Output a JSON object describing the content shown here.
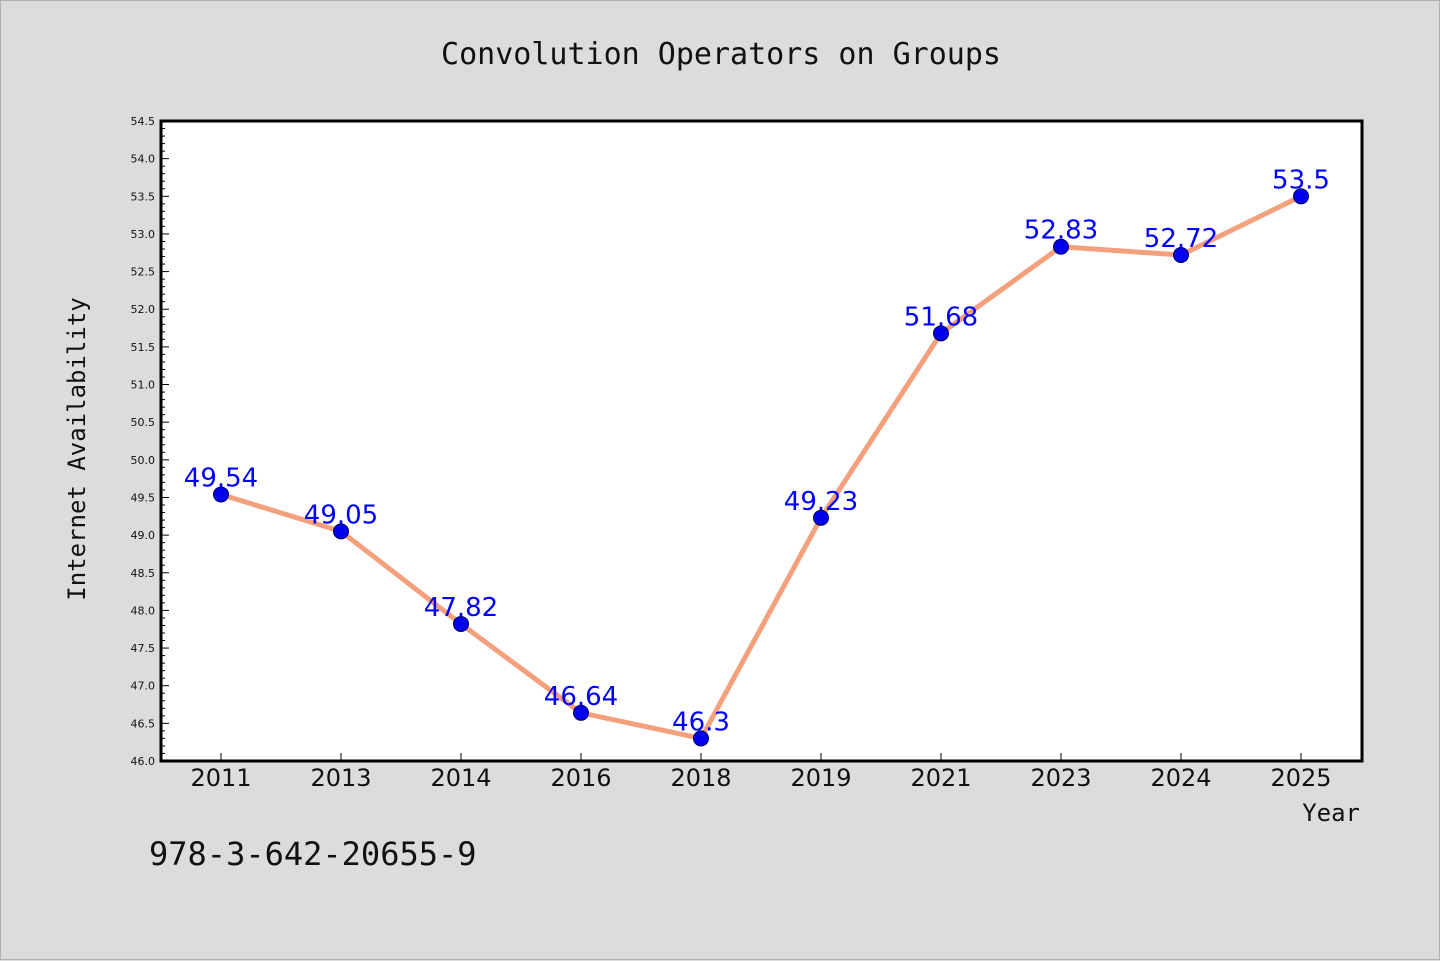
{
  "chart_data": {
    "type": "line",
    "title": "Convolution Operators on Groups",
    "xlabel": "Year",
    "ylabel": "Internet Availability",
    "categories": [
      "2011",
      "2013",
      "2014",
      "2016",
      "2018",
      "2019",
      "2021",
      "2023",
      "2024",
      "2025"
    ],
    "series": [
      {
        "values": [
          49.54,
          49.05,
          47.82,
          46.64,
          46.3,
          49.23,
          51.68,
          52.83,
          52.72,
          53.5
        ],
        "data_labels": [
          "49.54",
          "49.05",
          "47.82",
          "46.64",
          "46.3",
          "49.23",
          "51.68",
          "52.83",
          "52.72",
          "53.5"
        ],
        "line_color": "#f4a07c",
        "marker_color": "#0000ee"
      }
    ],
    "ylim": [
      46.0,
      54.5
    ],
    "yticks": [
      "46.0",
      "46.5",
      "47.0",
      "47.5",
      "48.0",
      "48.5",
      "49.0",
      "49.5",
      "50.0",
      "50.5",
      "51.0",
      "51.5",
      "52.0",
      "52.5",
      "53.0",
      "53.5",
      "54.0",
      "54.5"
    ],
    "grid": false,
    "legend": "none",
    "data_label_color": "#0000ff"
  },
  "footnote": "978-3-642-20655-9"
}
